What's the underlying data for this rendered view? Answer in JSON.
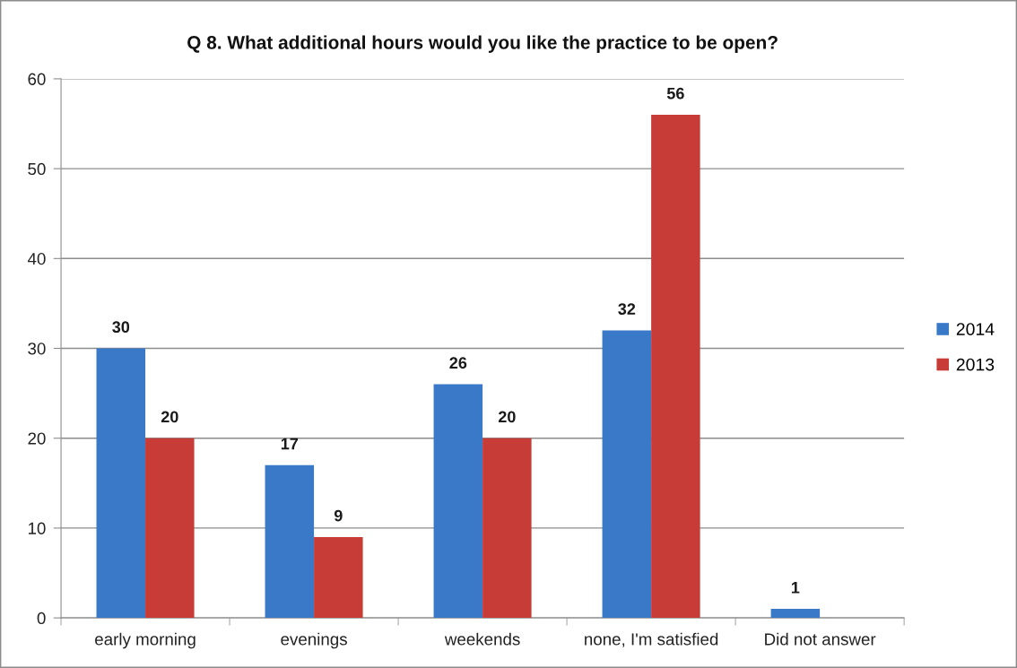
{
  "chart_data": {
    "type": "bar",
    "title": "Q 8. What additional hours would you like the practice to be open?",
    "categories": [
      "early morning",
      "evenings",
      "weekends",
      "none, I'm satisfied",
      "Did not answer"
    ],
    "series": [
      {
        "name": "2014",
        "color": "#3a78c8",
        "values": [
          30,
          17,
          26,
          32,
          1
        ]
      },
      {
        "name": "2013",
        "color": "#c83c38",
        "values": [
          20,
          9,
          20,
          56,
          null
        ]
      }
    ],
    "ylim": [
      0,
      60
    ],
    "yticks": [
      0,
      10,
      20,
      30,
      40,
      50,
      60
    ],
    "grid": "y",
    "legend": "right",
    "data_labels": true
  }
}
